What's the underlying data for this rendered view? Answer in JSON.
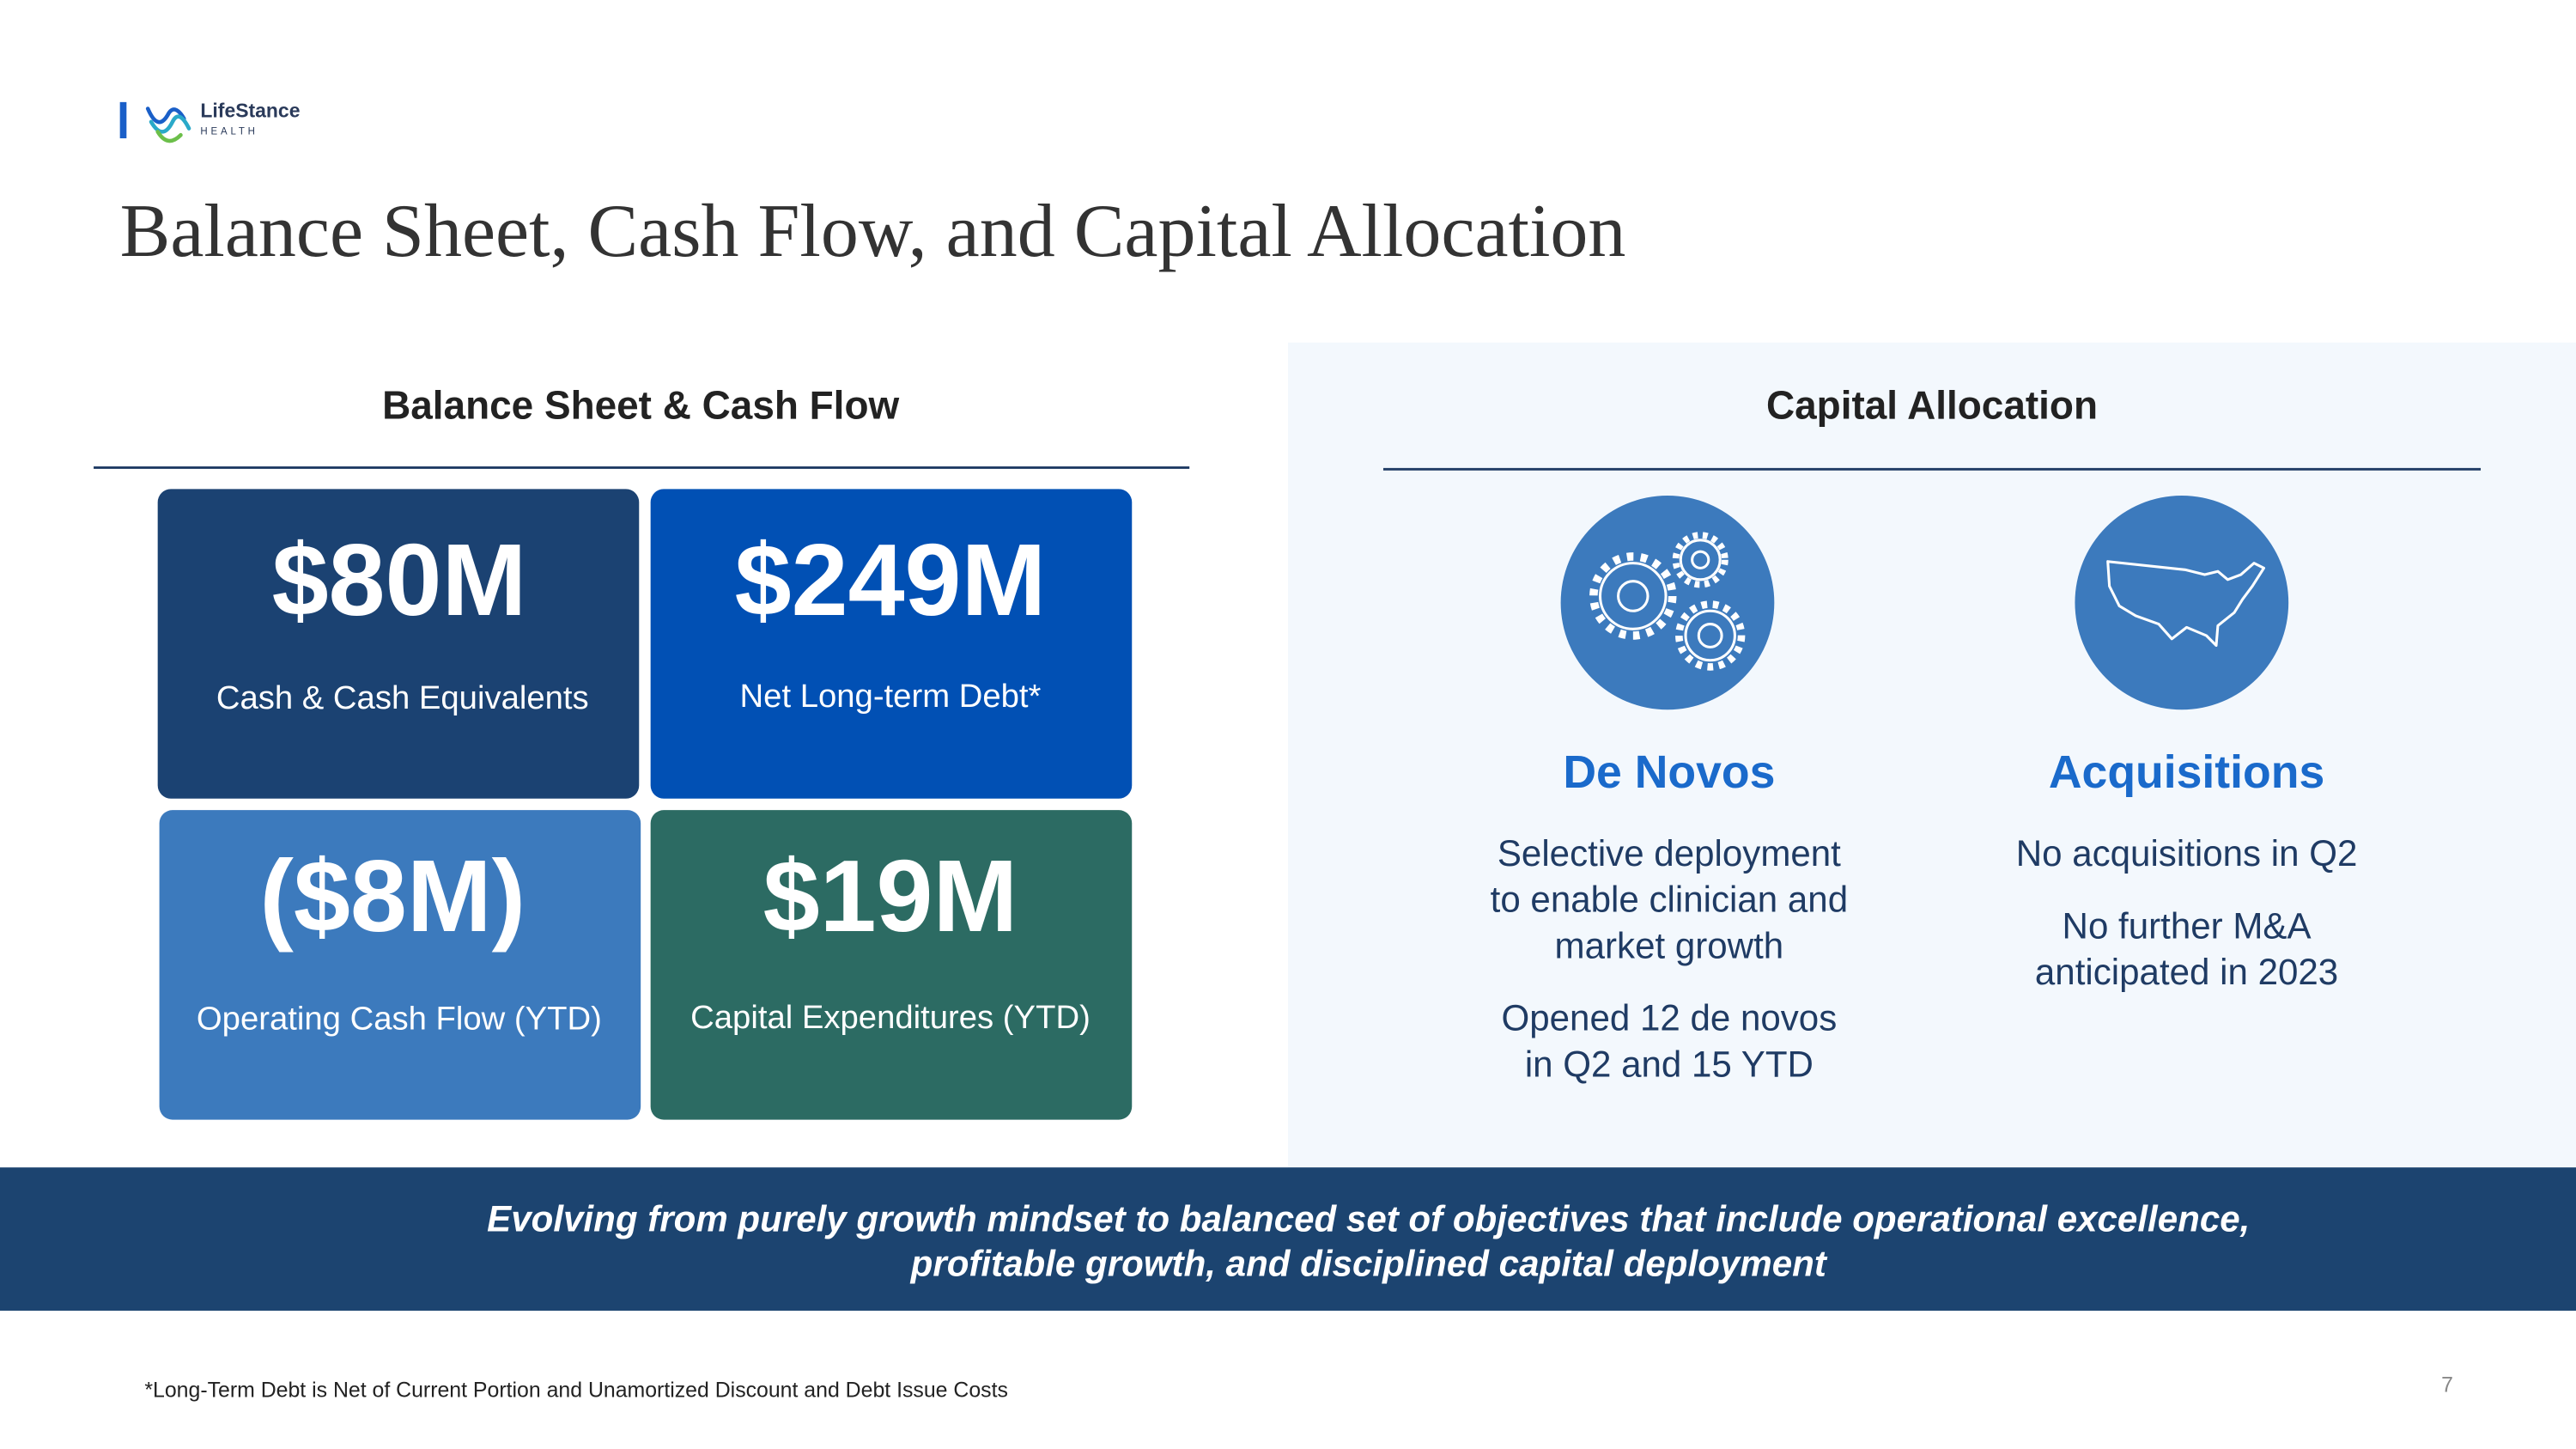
{
  "header": {
    "logo_name": "LifeStance",
    "logo_sub": "HEALTH",
    "title": "Balance Sheet, Cash Flow, and Capital Allocation"
  },
  "balance_sheet": {
    "heading": "Balance Sheet & Cash Flow",
    "tiles": [
      {
        "value": "$80M",
        "label": "Cash & Cash Equivalents"
      },
      {
        "value": "$249M",
        "label": "Net Long-term Debt*"
      },
      {
        "value": "($8M)",
        "label": "Operating Cash Flow (YTD)"
      },
      {
        "value": "$19M",
        "label": "Capital Expenditures (YTD)"
      }
    ]
  },
  "capital_allocation": {
    "heading": "Capital Allocation",
    "columns": [
      {
        "title": "De Novos",
        "paragraphs": [
          [
            "Selective deployment",
            "to enable clinician and",
            "market growth"
          ],
          [
            "Opened 12 de novos",
            "in Q2 and 15 YTD"
          ]
        ]
      },
      {
        "title": "Acquisitions",
        "paragraphs": [
          [
            "No acquisitions in Q2"
          ],
          [
            "No further M&A",
            "anticipated in 2023"
          ]
        ]
      }
    ]
  },
  "banner": [
    "Evolving from purely growth mindset to balanced set of objectives that include operational excellence,",
    "profitable growth, and disciplined capital deployment"
  ],
  "footnote": "*Long-Term Debt is Net of Current Portion and Unamortized Discount and Debt Issue Costs",
  "page_number": "7"
}
